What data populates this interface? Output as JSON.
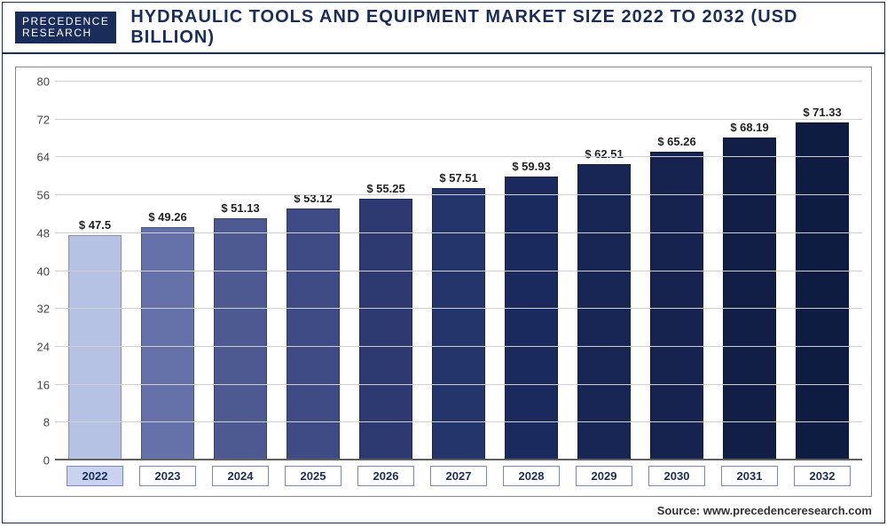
{
  "logo": {
    "line1": "PRECEDENCE",
    "line2": "RESEARCH"
  },
  "title": "HYDRAULIC TOOLS AND EQUIPMENT MARKET SIZE 2022 TO 2032 (USD BILLION)",
  "source": "Source: www.precedenceresearch.com",
  "chart": {
    "type": "bar",
    "ylim": [
      0,
      80
    ],
    "ytick_step": 8,
    "yticks": [
      0,
      8,
      16,
      24,
      32,
      40,
      48,
      56,
      64,
      72,
      80
    ],
    "grid_color": "#d0d0d0",
    "background_color": "#ffffff",
    "value_prefix": "$ ",
    "label_fontsize": 13,
    "title_fontsize": 20,
    "bar_width": 0.72,
    "x_label_border_color": "#7a88b8",
    "highlight_index": 0,
    "highlight_bg": "#c9d3ef",
    "categories": [
      "2022",
      "2023",
      "2024",
      "2025",
      "2026",
      "2027",
      "2028",
      "2029",
      "2030",
      "2031",
      "2032"
    ],
    "values": [
      47.5,
      49.26,
      51.13,
      53.12,
      55.25,
      57.51,
      59.93,
      62.51,
      65.26,
      68.19,
      71.33
    ],
    "bar_colors": [
      "#b6c2e4",
      "#6472a9",
      "#4d5a92",
      "#3e4b84",
      "#2d3a72",
      "#23356b",
      "#1a2a5e",
      "#172655",
      "#15234e",
      "#111f47",
      "#0f1c42"
    ]
  }
}
